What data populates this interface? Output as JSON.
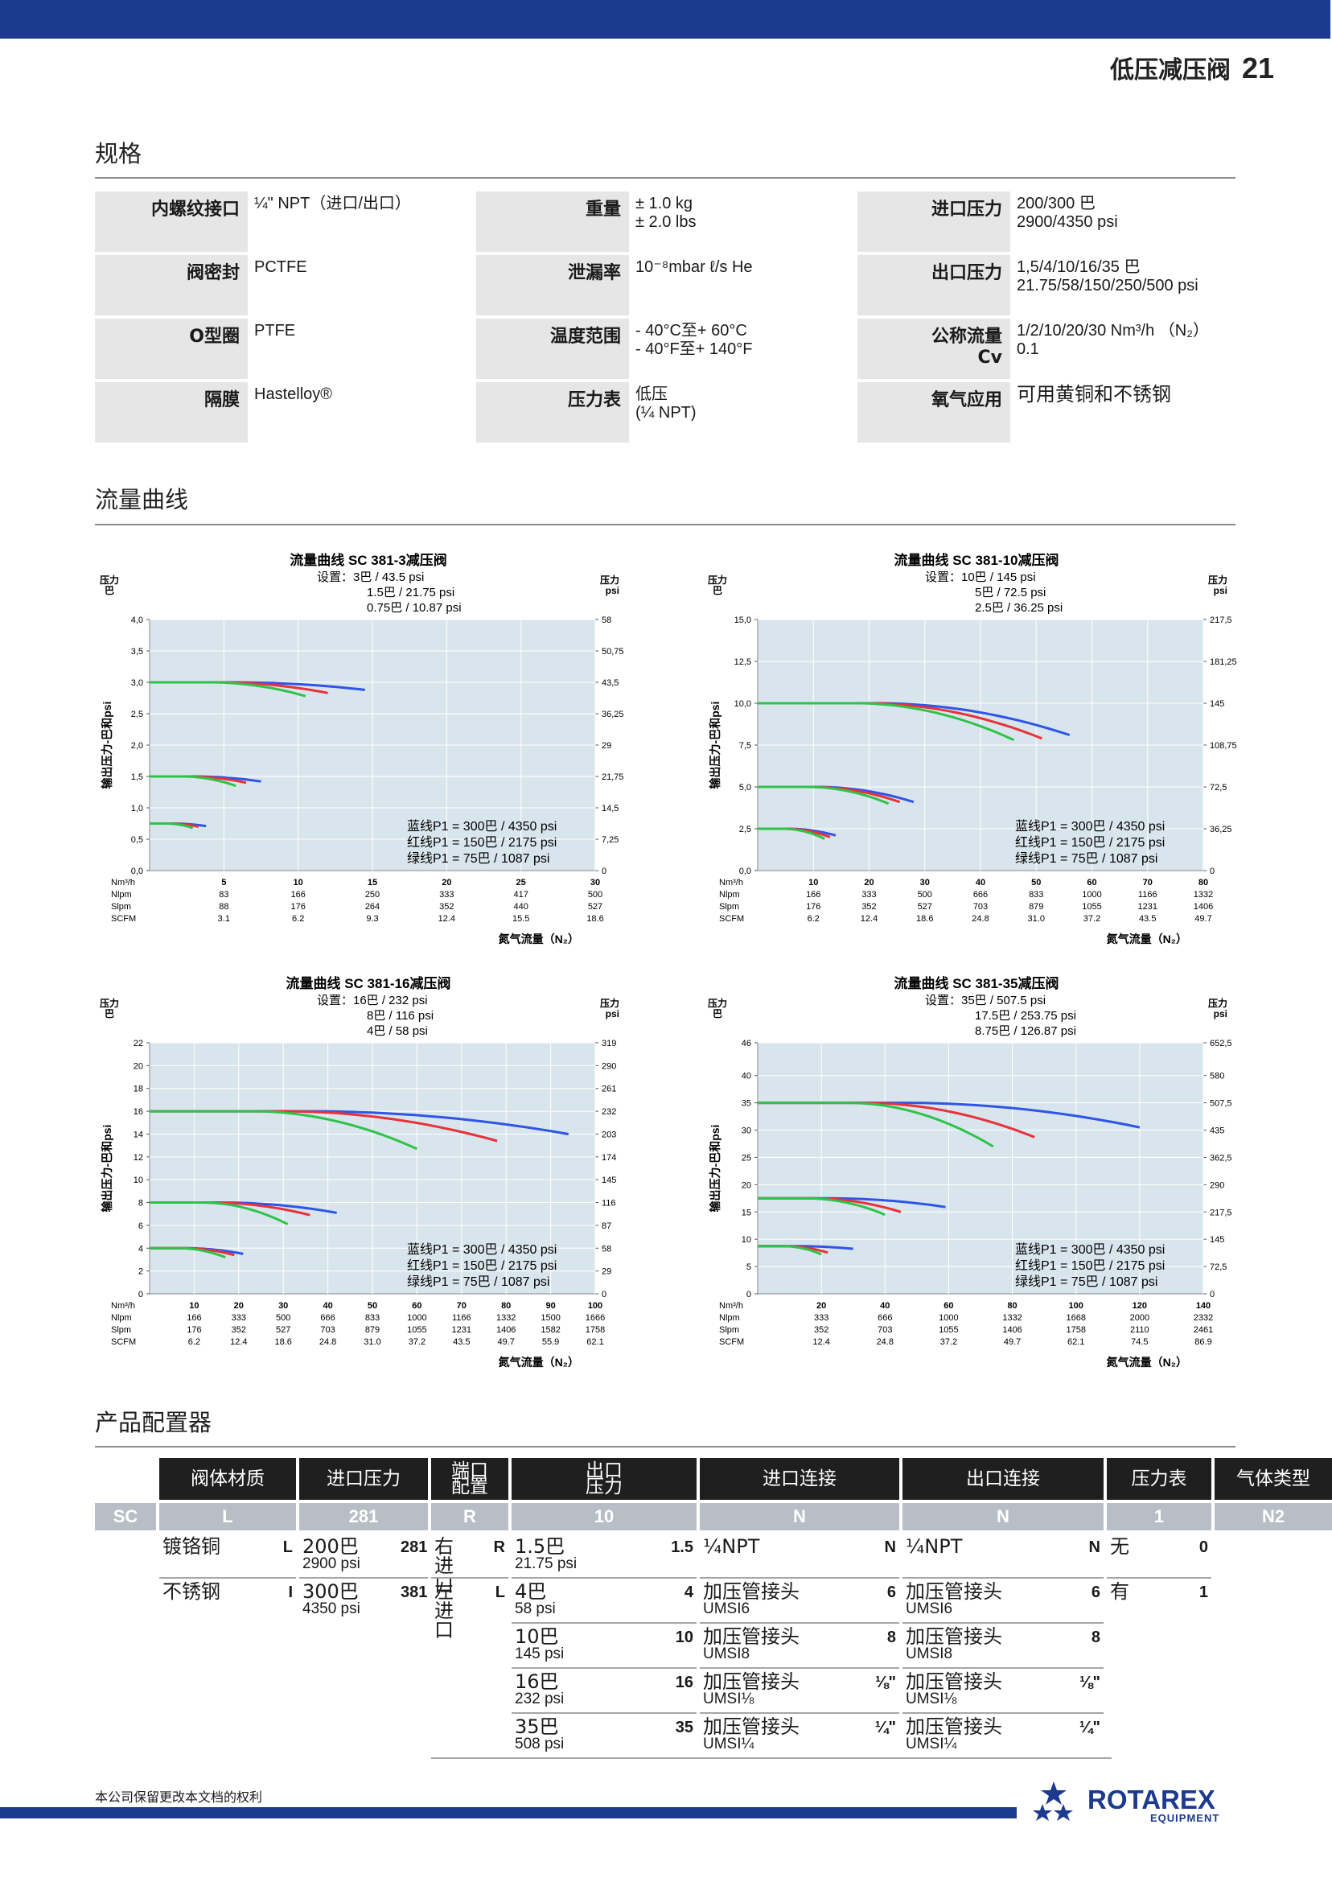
{
  "header": {
    "title": "低压减压阀",
    "page_number": "21"
  },
  "sections": {
    "specs": "规格",
    "flow": "流量曲线",
    "config": "产品配置器"
  },
  "specs": [
    [
      {
        "k": "内螺纹接口",
        "v": "¼\" NPT（进口/出口）"
      },
      {
        "k": "重量",
        "v": "± 1.0 kg\n± 2.0 lbs"
      },
      {
        "k": "进口压力",
        "v": "200/300 巴\n2900/4350 psi"
      }
    ],
    [
      {
        "k": "阀密封",
        "v": "PCTFE"
      },
      {
        "k": "泄漏率",
        "v": "10⁻⁸mbar ℓ/s He"
      },
      {
        "k": "出口压力",
        "v": "1,5/4/10/16/35 巴\n21.75/58/150/250/500 psi"
      }
    ],
    [
      {
        "k": "O型圈",
        "v": "PTFE"
      },
      {
        "k": "温度范围",
        "v": "- 40°C至+ 60°C\n- 40°F至+ 140°F"
      },
      {
        "k": "公称流量\nCv",
        "v": "1/2/10/20/30 Nm³/h （N₂）\n0.1"
      }
    ],
    [
      {
        "k": "隔膜",
        "v": "Hastelloy®"
      },
      {
        "k": "压力表",
        "v": "低压\n(¼ NPT)"
      },
      {
        "k": "氧气应用",
        "v": "可用黄铜和不锈钢"
      }
    ]
  ],
  "chart_common": {
    "left_unit": "压力\n巴",
    "right_unit": "压力\npsi",
    "ylabel": "输出压力-巴和psi",
    "xlabel": "氮气流量（N₂）",
    "row_labels": [
      "Nm³/h",
      "Nlpm",
      "Slpm",
      "SCFM"
    ],
    "legend": [
      "蓝线P1 = 300巴 / 4350 psi",
      "红线P1 = 150巴 / 2175 psi",
      "绿线P1 = 75巴 / 1087 psi"
    ],
    "colors": {
      "blue": "#2f55e6",
      "red": "#e8323a",
      "green": "#2fc24a",
      "plot_bg": "#d9e5ed"
    }
  },
  "chart_data": [
    {
      "type": "line",
      "title": "流量曲线 SC 381-3减压阀",
      "settings": [
        "设置：3巴 / 43.5 psi",
        "1.5巴 / 21.75 psi",
        "0.75巴 / 10.87 psi"
      ],
      "ylim": [
        0,
        4.0
      ],
      "xlim": [
        0,
        30
      ],
      "yticks": [
        "0,0",
        "0,5",
        "1,0",
        "1,5",
        "2,0",
        "2,5",
        "3,0",
        "3,5",
        "4,0"
      ],
      "rticks": [
        "0",
        "7,25",
        "14,5",
        "21,75",
        "29",
        "36,25",
        "43,5",
        "50,75",
        "58"
      ],
      "xrows": [
        [
          "5",
          "10",
          "15",
          "20",
          "25",
          "30"
        ],
        [
          "83",
          "166",
          "250",
          "333",
          "417",
          "500"
        ],
        [
          "88",
          "176",
          "264",
          "352",
          "440",
          "527"
        ],
        [
          "3.1",
          "6.2",
          "9.3",
          "12.4",
          "15.5",
          "18.6"
        ]
      ],
      "series": [
        {
          "name": "蓝线",
          "color": "blue",
          "levels": [
            {
              "p": 3.0,
              "end": 14.5,
              "drop": 0.12
            },
            {
              "p": 1.5,
              "end": 7.5,
              "drop": 0.08
            },
            {
              "p": 0.75,
              "end": 3.8,
              "drop": 0.04
            }
          ]
        },
        {
          "name": "红线",
          "color": "red",
          "levels": [
            {
              "p": 3.0,
              "end": 12.0,
              "drop": 0.17
            },
            {
              "p": 1.5,
              "end": 6.5,
              "drop": 0.1
            },
            {
              "p": 0.75,
              "end": 3.3,
              "drop": 0.05
            }
          ]
        },
        {
          "name": "绿线",
          "color": "green",
          "levels": [
            {
              "p": 3.0,
              "end": 10.5,
              "drop": 0.22
            },
            {
              "p": 1.5,
              "end": 5.8,
              "drop": 0.15
            },
            {
              "p": 0.75,
              "end": 2.9,
              "drop": 0.07
            }
          ]
        }
      ]
    },
    {
      "type": "line",
      "title": "流量曲线 SC 381-10减压阀",
      "settings": [
        "设置：10巴 / 145 psi",
        "5巴 / 72.5 psi",
        "2.5巴 / 36.25 psi"
      ],
      "ylim": [
        0,
        15.0
      ],
      "xlim": [
        0,
        80
      ],
      "yticks": [
        "0,0",
        "2,5",
        "5,0",
        "7,5",
        "10,0",
        "12,5",
        "15,0"
      ],
      "rticks": [
        "0",
        "36,25",
        "72,5",
        "108,75",
        "145",
        "181,25",
        "217,5"
      ],
      "xrows": [
        [
          "10",
          "20",
          "30",
          "40",
          "50",
          "60",
          "70",
          "80"
        ],
        [
          "166",
          "333",
          "500",
          "666",
          "833",
          "1000",
          "1166",
          "1332"
        ],
        [
          "176",
          "352",
          "527",
          "703",
          "879",
          "1055",
          "1231",
          "1406"
        ],
        [
          "6.2",
          "12.4",
          "18.6",
          "24.8",
          "31.0",
          "37.2",
          "43.5",
          "49.7"
        ]
      ],
      "series": [
        {
          "name": "蓝线",
          "color": "blue",
          "levels": [
            {
              "p": 10,
              "end": 56,
              "drop": 1.9
            },
            {
              "p": 5,
              "end": 28,
              "drop": 0.9
            },
            {
              "p": 2.5,
              "end": 14,
              "drop": 0.4
            }
          ]
        },
        {
          "name": "红线",
          "color": "red",
          "levels": [
            {
              "p": 10,
              "end": 51,
              "drop": 2.1
            },
            {
              "p": 5,
              "end": 25.5,
              "drop": 0.9
            },
            {
              "p": 2.5,
              "end": 13,
              "drop": 0.5
            }
          ]
        },
        {
          "name": "绿线",
          "color": "green",
          "levels": [
            {
              "p": 10,
              "end": 46,
              "drop": 2.2
            },
            {
              "p": 5,
              "end": 23.5,
              "drop": 1.0
            },
            {
              "p": 2.5,
              "end": 12,
              "drop": 0.6
            }
          ]
        }
      ]
    },
    {
      "type": "line",
      "title": "流量曲线 SC 381-16减压阀",
      "settings": [
        "设置：16巴 / 232 psi",
        "8巴 / 116 psi",
        "4巴 / 58 psi"
      ],
      "ylim": [
        0,
        22
      ],
      "xlim": [
        0,
        100
      ],
      "yticks": [
        "0",
        "2",
        "4",
        "6",
        "8",
        "10",
        "12",
        "14",
        "16",
        "18",
        "20",
        "22"
      ],
      "rticks": [
        "0",
        "29",
        "58",
        "87",
        "116",
        "145",
        "174",
        "203",
        "232",
        "261",
        "290",
        "319"
      ],
      "xrows": [
        [
          "10",
          "20",
          "30",
          "40",
          "50",
          "60",
          "70",
          "80",
          "90",
          "100"
        ],
        [
          "166",
          "333",
          "500",
          "666",
          "833",
          "1000",
          "1166",
          "1332",
          "1500",
          "1666"
        ],
        [
          "176",
          "352",
          "527",
          "703",
          "879",
          "1055",
          "1231",
          "1406",
          "1582",
          "1758"
        ],
        [
          "6.2",
          "12.4",
          "18.6",
          "24.8",
          "31.0",
          "37.2",
          "43.5",
          "49.7",
          "55.9",
          "62.1"
        ]
      ],
      "series": [
        {
          "name": "蓝线",
          "color": "blue",
          "levels": [
            {
              "p": 16,
              "end": 94,
              "drop": 2.0
            },
            {
              "p": 8,
              "end": 42,
              "drop": 0.9
            },
            {
              "p": 4,
              "end": 21,
              "drop": 0.5
            }
          ]
        },
        {
          "name": "红线",
          "color": "red",
          "levels": [
            {
              "p": 16,
              "end": 78,
              "drop": 2.6
            },
            {
              "p": 8,
              "end": 36,
              "drop": 1.1
            },
            {
              "p": 4,
              "end": 19,
              "drop": 0.6
            }
          ]
        },
        {
          "name": "绿线",
          "color": "green",
          "levels": [
            {
              "p": 16,
              "end": 60,
              "drop": 3.3
            },
            {
              "p": 8,
              "end": 31,
              "drop": 1.9
            },
            {
              "p": 4,
              "end": 17,
              "drop": 0.8
            }
          ]
        }
      ]
    },
    {
      "type": "line",
      "title": "流量曲线 SC 381-35减压阀",
      "settings": [
        "设置：35巴 / 507.5 psi",
        "17.5巴 / 253.75 psi",
        "8.75巴 / 126.87 psi"
      ],
      "ylim": [
        0,
        46
      ],
      "xlim": [
        0,
        140
      ],
      "yticks": [
        "0",
        "5",
        "10",
        "15",
        "20",
        "25",
        "30",
        "35",
        "40",
        "46"
      ],
      "rticks": [
        "0",
        "72,5",
        "145",
        "217,5",
        "290",
        "362,5",
        "435",
        "507,5",
        "580",
        "652,5"
      ],
      "xrows": [
        [
          "20",
          "40",
          "60",
          "80",
          "100",
          "120",
          "140"
        ],
        [
          "333",
          "666",
          "1000",
          "1332",
          "1668",
          "2000",
          "2332"
        ],
        [
          "352",
          "703",
          "1055",
          "1406",
          "1758",
          "2110",
          "2461"
        ],
        [
          "12.4",
          "24.8",
          "37.2",
          "49.7",
          "62.1",
          "74.5",
          "86.9"
        ]
      ],
      "series": [
        {
          "name": "蓝线",
          "color": "blue",
          "levels": [
            {
              "p": 35,
              "end": 120,
              "drop": 4.5
            },
            {
              "p": 17.5,
              "end": 59,
              "drop": 1.6
            },
            {
              "p": 8.75,
              "end": 30,
              "drop": 0.5
            }
          ]
        },
        {
          "name": "红线",
          "color": "red",
          "levels": [
            {
              "p": 35,
              "end": 87,
              "drop": 6.3
            },
            {
              "p": 17.5,
              "end": 45,
              "drop": 2.5
            },
            {
              "p": 8.75,
              "end": 22,
              "drop": 1.2
            }
          ]
        },
        {
          "name": "绿线",
          "color": "green",
          "levels": [
            {
              "p": 35,
              "end": 74,
              "drop": 8.0
            },
            {
              "p": 17.5,
              "end": 40,
              "drop": 3.0
            },
            {
              "p": 8.75,
              "end": 20,
              "drop": 1.5
            }
          ]
        }
      ]
    }
  ],
  "config": {
    "headers": [
      "阀体材质",
      "进口压力",
      "端口\n配置",
      "出口\n压力",
      "进口连接",
      "出口连接",
      "压力表",
      "气体类型"
    ],
    "codes": [
      "SC",
      "L",
      "281",
      "R",
      "10",
      "N",
      "N",
      "1",
      "N2"
    ],
    "body": [
      {
        "l": "镀铬铜",
        "c": "L"
      },
      {
        "l": "不锈钢",
        "c": "I"
      }
    ],
    "inlet": [
      {
        "l": "200巴",
        "s": "2900 psi",
        "c": "281"
      },
      {
        "l": "300巴",
        "s": "4350 psi",
        "c": "381"
      }
    ],
    "port": [
      {
        "l": "右进口",
        "c": "R"
      },
      {
        "l": "左进口",
        "c": "L"
      }
    ],
    "outlet": [
      {
        "l": "1.5巴",
        "s": "21.75 psi",
        "c": "1.5"
      },
      {
        "l": "4巴",
        "s": "58 psi",
        "c": "4"
      },
      {
        "l": "10巴",
        "s": "145 psi",
        "c": "10"
      },
      {
        "l": "16巴",
        "s": "232 psi",
        "c": "16"
      },
      {
        "l": "35巴",
        "s": "508 psi",
        "c": "35"
      }
    ],
    "in_conn": [
      {
        "l": "¼NPT",
        "s": "",
        "c": "N"
      },
      {
        "l": "加压管接头",
        "s": "UMSI6",
        "c": "6"
      },
      {
        "l": "加压管接头",
        "s": "UMSI8",
        "c": "8"
      },
      {
        "l": "加压管接头",
        "s": "UMSI⅛",
        "c": "⅛\""
      },
      {
        "l": "加压管接头",
        "s": "UMSI¼",
        "c": "¼\""
      }
    ],
    "out_conn": [
      {
        "l": "¼NPT",
        "s": "",
        "c": "N"
      },
      {
        "l": "加压管接头",
        "s": "UMSI6",
        "c": "6"
      },
      {
        "l": "加压管接头",
        "s": "UMSI8",
        "c": "8"
      },
      {
        "l": "加压管接头",
        "s": "UMSI⅛",
        "c": "⅛\""
      },
      {
        "l": "加压管接头",
        "s": "UMSI¼",
        "c": "¼\""
      }
    ],
    "gauge": [
      {
        "l": "无",
        "c": "0"
      },
      {
        "l": "有",
        "c": "1"
      }
    ]
  },
  "footer": {
    "note": "本公司保留更改本文档的权利",
    "brand": "ROTAREX",
    "brand_sub": "EQUIPMENT"
  }
}
